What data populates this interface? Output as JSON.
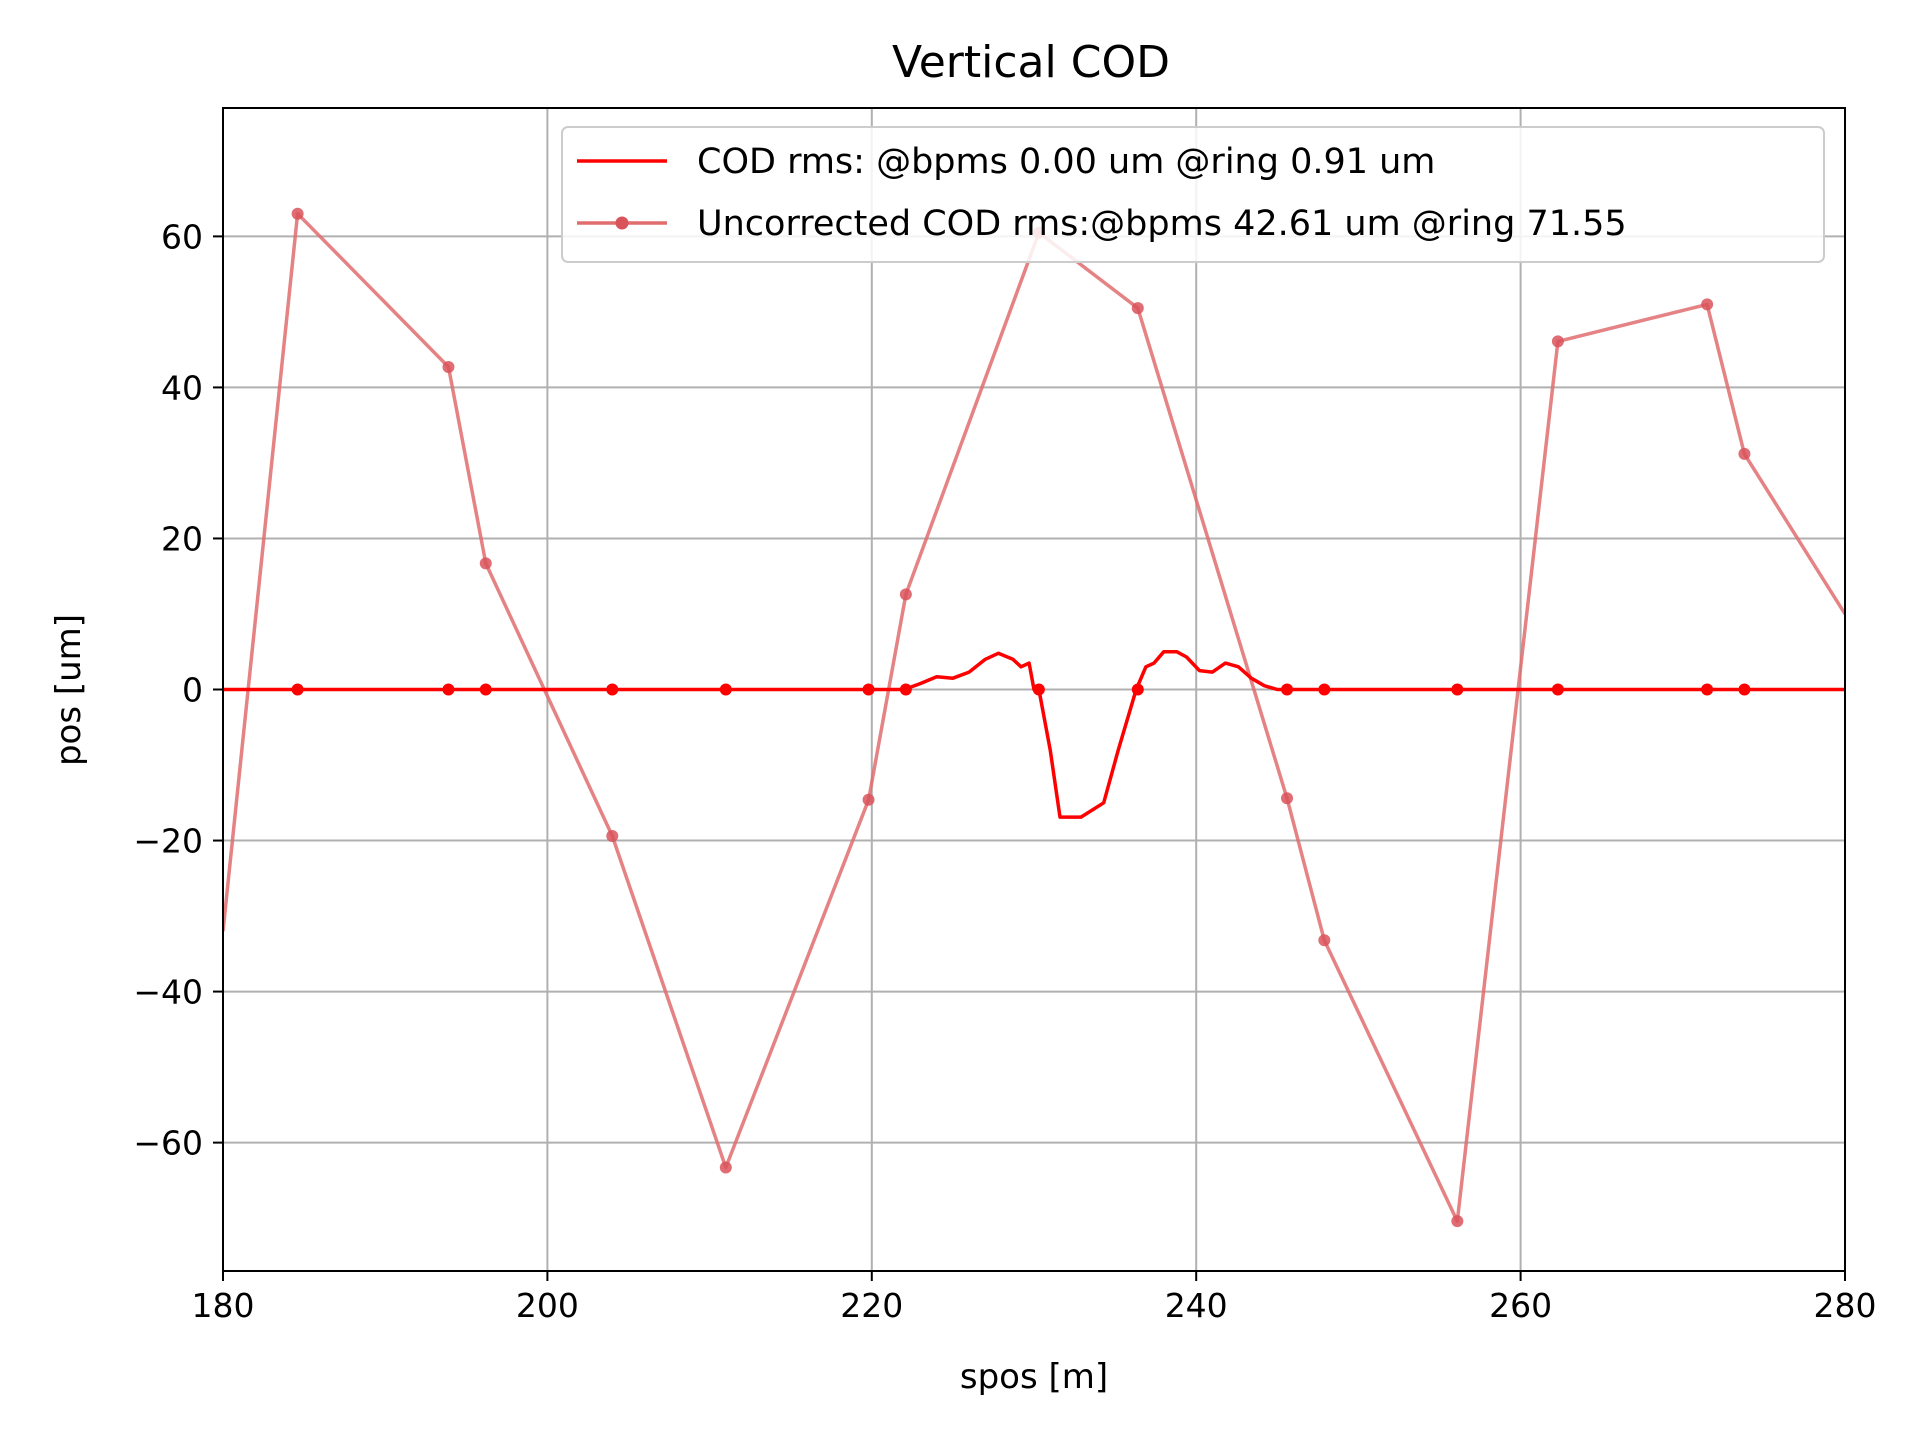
{
  "chart_data": {
    "type": "line",
    "title": "Vertical COD",
    "xlabel": "spos [m]",
    "ylabel": "pos [um]",
    "xlim": [
      180,
      280
    ],
    "ylim": [
      -77,
      77
    ],
    "xticks": [
      180,
      200,
      220,
      240,
      260,
      280
    ],
    "yticks": [
      -60,
      -40,
      -20,
      0,
      20,
      40,
      60
    ],
    "xtick_labels": [
      "180",
      "200",
      "220",
      "240",
      "260",
      "280"
    ],
    "ytick_labels": [
      "−60",
      "−40",
      "−20",
      "0",
      "20",
      "40",
      "60"
    ],
    "grid": true,
    "legend_position": "top-right",
    "series": [
      {
        "name": "COD rms: @bpms 0.00 um @ring 0.91 um",
        "color": "#ff0000",
        "style": "line",
        "x": [
          180,
          222.0,
          223.0,
          224.0,
          225.0,
          226.0,
          227.0,
          227.8,
          228.7,
          229.2,
          229.7,
          230.0,
          230.3,
          231.0,
          231.6,
          232.9,
          234.3,
          235.2,
          236.3,
          236.9,
          237.4,
          238.0,
          238.8,
          239.4,
          240.2,
          241.0,
          241.8,
          242.6,
          243.4,
          244.2,
          245.0,
          245.6,
          280
        ],
        "y": [
          0,
          0,
          0.8,
          1.7,
          1.5,
          2.3,
          4.0,
          4.8,
          4.0,
          3.0,
          3.5,
          0,
          0,
          -8.0,
          -16.9,
          -16.9,
          -15.0,
          -8.0,
          0,
          3.0,
          3.5,
          5.0,
          5.0,
          4.3,
          2.5,
          2.3,
          3.5,
          3.0,
          1.5,
          0.5,
          0,
          0,
          0
        ]
      },
      {
        "name": "",
        "color": "#ff0000",
        "style": "markers",
        "x": [
          184.6,
          193.9,
          196.2,
          204.0,
          211.0,
          219.8,
          222.1,
          230.3,
          236.4,
          245.6,
          247.9,
          256.1,
          262.3,
          271.5,
          273.8
        ],
        "y": [
          0,
          0,
          0,
          0,
          0,
          0,
          0,
          0,
          0,
          0,
          0,
          0,
          0,
          0,
          0
        ]
      },
      {
        "name": "Uncorrected COD rms:@bpms 42.61 um @ring 71.55",
        "color": "#e06c6e",
        "style": "line+markers",
        "x": [
          180.0,
          184.6,
          193.9,
          196.2,
          204.0,
          211.0,
          219.8,
          222.1,
          230.3,
          236.4,
          245.6,
          247.9,
          256.1,
          262.3,
          271.5,
          273.8,
          280.0
        ],
        "y": [
          -32.0,
          63.0,
          42.7,
          16.7,
          -19.4,
          -63.3,
          -14.6,
          12.6,
          60.5,
          50.5,
          -14.4,
          -33.2,
          -70.4,
          46.1,
          51.0,
          31.2,
          10.0
        ]
      }
    ]
  }
}
